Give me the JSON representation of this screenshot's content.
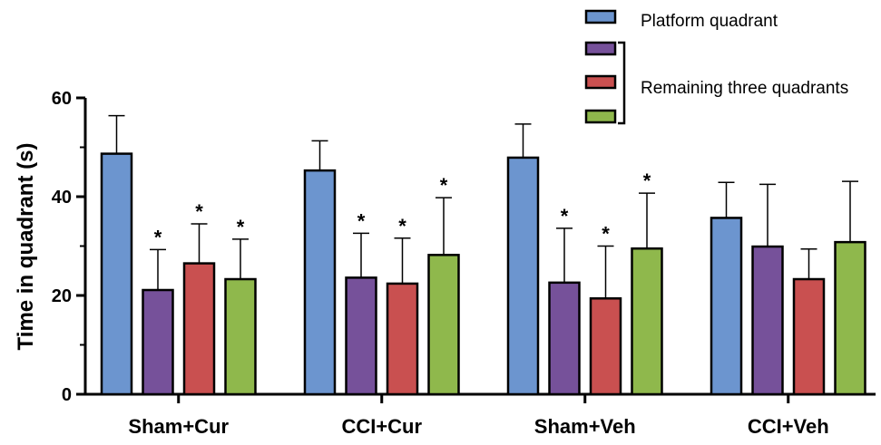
{
  "chart_data": {
    "type": "bar",
    "ylabel": "Time in quadrant (s)",
    "xlabel": "",
    "ylim": [
      0,
      60
    ],
    "yticks": [
      0,
      20,
      40,
      60
    ],
    "categories": [
      "Sham+Cur",
      "CCI+Cur",
      "Sham+Veh",
      "CCI+Veh"
    ],
    "series": [
      {
        "name": "Platform quadrant",
        "color": "#6c95cf",
        "values": [
          48.7,
          45.3,
          47.9,
          35.7
        ],
        "errors": [
          7.7,
          6.0,
          6.8,
          7.2
        ],
        "significance": [
          "",
          "",
          "",
          ""
        ]
      },
      {
        "name": "",
        "color": "#76519a",
        "values": [
          21.1,
          23.6,
          22.6,
          29.9
        ],
        "errors": [
          8.2,
          9.0,
          11.0,
          12.6
        ],
        "significance": [
          "*",
          "*",
          "*",
          ""
        ]
      },
      {
        "name": "",
        "color": "#c95050",
        "values": [
          26.5,
          22.4,
          19.4,
          23.3
        ],
        "errors": [
          8.0,
          9.2,
          10.6,
          6.1
        ],
        "significance": [
          "*",
          "*",
          "*",
          ""
        ]
      },
      {
        "name": "",
        "color": "#8fb84c",
        "values": [
          23.3,
          28.2,
          29.5,
          30.8
        ],
        "errors": [
          8.1,
          11.6,
          11.2,
          12.3
        ],
        "significance": [
          "*",
          "*",
          "*",
          ""
        ]
      }
    ],
    "legend": {
      "placement": "top-right",
      "bracket_label": "Remaining three quadrants"
    },
    "grid": false
  }
}
